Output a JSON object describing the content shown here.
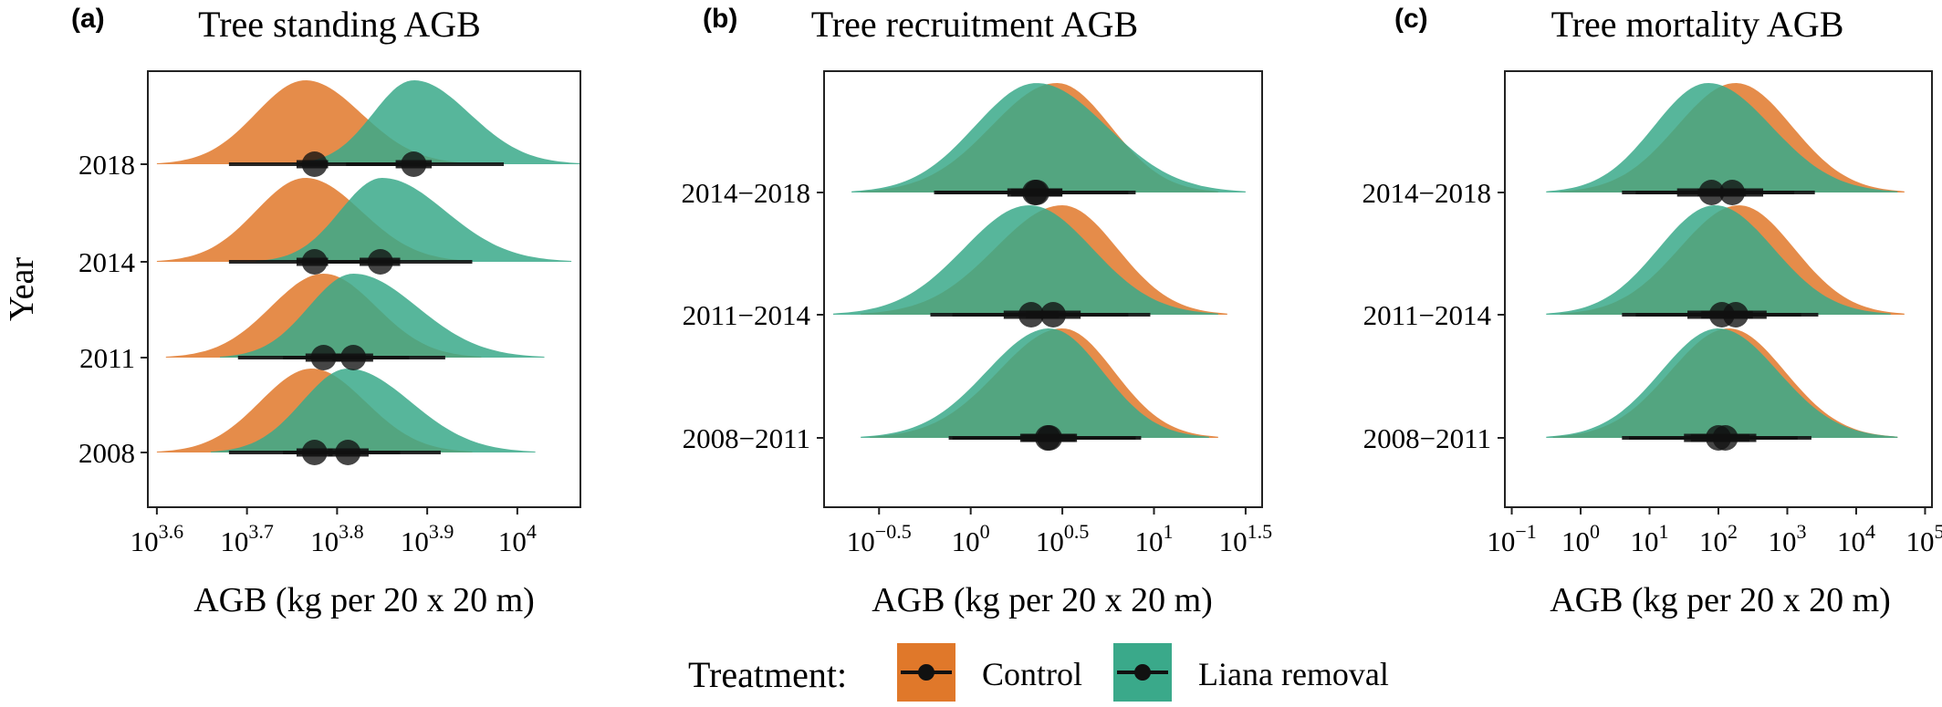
{
  "colors": {
    "control": "#E0782A",
    "liana_removal": "#3AA98A",
    "overlap": "#3E9565",
    "point": "#111111"
  },
  "legend": {
    "title": "Treatment:",
    "items": [
      "Control",
      "Liana removal"
    ]
  },
  "chart_data": [
    {
      "panel": "(a)",
      "type": "area",
      "title": "Tree standing AGB",
      "xlabel": "AGB (kg per 20 x 20 m)",
      "ylabel": "Year",
      "xscale": "log10",
      "xlim": [
        3.59,
        4.07
      ],
      "x_ticks": [
        3.6,
        3.7,
        3.8,
        3.9,
        4.0
      ],
      "x_tick_labels": [
        "3.6",
        "3.7",
        "3.8",
        "3.9",
        "4"
      ],
      "categories": [
        "2018",
        "2014",
        "2011",
        "2008"
      ],
      "grid": false,
      "series": [
        {
          "name": "Control",
          "points": [
            {
              "category": "2018",
              "median": 3.775,
              "q66": [
                3.755,
                3.79
              ],
              "q95": [
                3.68,
                3.87
              ],
              "peak": 3.765,
              "range": [
                3.6,
                3.95
              ]
            },
            {
              "category": "2014",
              "median": 3.775,
              "q66": [
                3.755,
                3.79
              ],
              "q95": [
                3.68,
                3.87
              ],
              "peak": 3.765,
              "range": [
                3.6,
                3.95
              ]
            },
            {
              "category": "2011",
              "median": 3.785,
              "q66": [
                3.765,
                3.805
              ],
              "q95": [
                3.69,
                3.88
              ],
              "peak": 3.785,
              "range": [
                3.61,
                3.96
              ]
            },
            {
              "category": "2008",
              "median": 3.775,
              "q66": [
                3.755,
                3.795
              ],
              "q95": [
                3.68,
                3.87
              ],
              "peak": 3.772,
              "range": [
                3.6,
                3.95
              ]
            }
          ]
        },
        {
          "name": "Liana removal",
          "points": [
            {
              "category": "2018",
              "median": 3.885,
              "q66": [
                3.865,
                3.905
              ],
              "q95": [
                3.81,
                3.985
              ],
              "peak": 3.885,
              "range": [
                3.75,
                4.07
              ]
            },
            {
              "category": "2014",
              "median": 3.848,
              "q66": [
                3.825,
                3.87
              ],
              "q95": [
                3.77,
                3.95
              ],
              "peak": 3.85,
              "range": [
                3.71,
                4.06
              ]
            },
            {
              "category": "2011",
              "median": 3.818,
              "q66": [
                3.795,
                3.84
              ],
              "q95": [
                3.74,
                3.92
              ],
              "peak": 3.818,
              "range": [
                3.67,
                4.03
              ]
            },
            {
              "category": "2008",
              "median": 3.812,
              "q66": [
                3.79,
                3.835
              ],
              "q95": [
                3.74,
                3.915
              ],
              "peak": 3.812,
              "range": [
                3.66,
                4.02
              ]
            }
          ]
        }
      ]
    },
    {
      "panel": "(b)",
      "type": "area",
      "title": "Tree recruitment AGB",
      "xlabel": "AGB (kg per 20 x 20 m)",
      "ylabel": "",
      "xscale": "log10",
      "xlim": [
        -0.8,
        1.59
      ],
      "x_ticks": [
        -0.5,
        0,
        0.5,
        1,
        1.5
      ],
      "x_tick_labels": [
        "−0.5",
        "0",
        "0.5",
        "1",
        "1.5"
      ],
      "categories": [
        "2014−2018",
        "2011−2014",
        "2008−2011"
      ],
      "grid": false,
      "series": [
        {
          "name": "Control",
          "points": [
            {
              "category": "2014−2018",
              "median": 0.36,
              "q66": [
                0.22,
                0.5
              ],
              "q95": [
                -0.19,
                0.9
              ],
              "peak": 0.47,
              "range": [
                -0.6,
                1.35
              ]
            },
            {
              "category": "2011−2014",
              "median": 0.45,
              "q66": [
                0.3,
                0.6
              ],
              "q95": [
                -0.1,
                0.98
              ],
              "peak": 0.5,
              "range": [
                -0.6,
                1.4
              ]
            },
            {
              "category": "2008−2011",
              "median": 0.43,
              "q66": [
                0.28,
                0.58
              ],
              "q95": [
                -0.1,
                0.93
              ],
              "peak": 0.5,
              "range": [
                -0.55,
                1.35
              ]
            }
          ]
        },
        {
          "name": "Liana removal",
          "points": [
            {
              "category": "2014−2018",
              "median": 0.35,
              "q66": [
                0.2,
                0.5
              ],
              "q95": [
                -0.2,
                0.86
              ],
              "peak": 0.36,
              "range": [
                -0.65,
                1.5
              ]
            },
            {
              "category": "2011−2014",
              "median": 0.33,
              "q66": [
                0.18,
                0.48
              ],
              "q95": [
                -0.22,
                0.86
              ],
              "peak": 0.32,
              "range": [
                -0.75,
                1.35
              ]
            },
            {
              "category": "2008−2011",
              "median": 0.42,
              "q66": [
                0.27,
                0.57
              ],
              "q95": [
                -0.12,
                0.9
              ],
              "peak": 0.43,
              "range": [
                -0.6,
                1.3
              ]
            }
          ]
        }
      ]
    },
    {
      "panel": "(c)",
      "type": "area",
      "title": "Tree mortality AGB",
      "xlabel": "AGB (kg per 20 x 20 m)",
      "ylabel": "",
      "xscale": "log10",
      "xlim": [
        -1.1,
        5.1
      ],
      "x_ticks": [
        -1,
        0,
        1,
        2,
        3,
        4,
        5
      ],
      "x_tick_labels": [
        "−1",
        "0",
        "1",
        "2",
        "3",
        "4",
        "5"
      ],
      "categories": [
        "2014−2018",
        "2011−2014",
        "2008−2011"
      ],
      "grid": false,
      "series": [
        {
          "name": "Control",
          "points": [
            {
              "category": "2014−2018",
              "median": 2.2,
              "q66": [
                1.7,
                2.65
              ],
              "q95": [
                0.8,
                3.4
              ],
              "peak": 2.25,
              "range": [
                -0.3,
                4.7
              ]
            },
            {
              "category": "2011−2014",
              "median": 2.25,
              "q66": [
                1.75,
                2.7
              ],
              "q95": [
                0.8,
                3.45
              ],
              "peak": 2.3,
              "range": [
                -0.3,
                4.7
              ]
            },
            {
              "category": "2008−2011",
              "median": 2.1,
              "q66": [
                1.6,
                2.55
              ],
              "q95": [
                0.7,
                3.35
              ],
              "peak": 2.15,
              "range": [
                -0.4,
                4.6
              ]
            }
          ]
        },
        {
          "name": "Liana removal",
          "points": [
            {
              "category": "2014−2018",
              "median": 1.9,
              "q66": [
                1.4,
                2.4
              ],
              "q95": [
                0.6,
                3.1
              ],
              "peak": 1.85,
              "range": [
                -0.5,
                4.6
              ]
            },
            {
              "category": "2011−2014",
              "median": 2.05,
              "q66": [
                1.55,
                2.5
              ],
              "q95": [
                0.6,
                3.2
              ],
              "peak": 1.95,
              "range": [
                -0.5,
                4.5
              ]
            },
            {
              "category": "2008−2011",
              "median": 2.0,
              "q66": [
                1.5,
                2.45
              ],
              "q95": [
                0.6,
                3.15
              ],
              "peak": 2.0,
              "range": [
                -0.5,
                4.6
              ]
            }
          ]
        }
      ]
    }
  ]
}
